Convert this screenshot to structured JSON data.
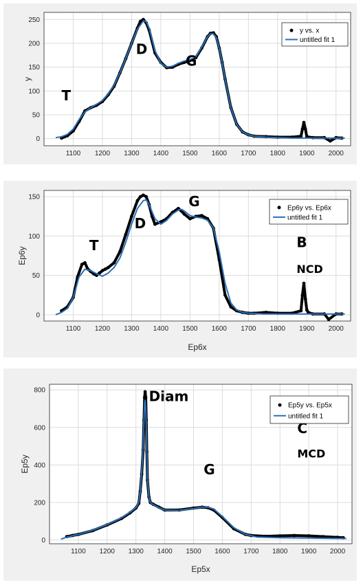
{
  "colors": {
    "frame": "#f0f0f0",
    "data": "#000000",
    "fit": "#2b6fb8",
    "grid": "#dcdcdc",
    "axes_bg": "#ffffff"
  },
  "chart_data": [
    {
      "type": "scatter",
      "xlabel": "",
      "ylabel": "y",
      "xlim": [
        1000,
        2050
      ],
      "ylim": [
        -15,
        265
      ],
      "xticks": [
        1100,
        1200,
        1300,
        1400,
        1500,
        1600,
        1700,
        1800,
        1900,
        2000
      ],
      "yticks": [
        0,
        50,
        100,
        150,
        200,
        250
      ],
      "grid": true,
      "legend": {
        "placement": "top-right",
        "entries": [
          "y vs. x",
          "untitled fit 1"
        ]
      },
      "annotations": [
        {
          "text": "T",
          "x": 1060,
          "y": 80,
          "size": 20
        },
        {
          "text": "D",
          "x": 1315,
          "y": 178,
          "size": 20
        },
        {
          "text": "G",
          "x": 1485,
          "y": 153,
          "size": 20
        }
      ],
      "series": [
        {
          "name": "y vs. x",
          "kind": "points",
          "x": [
            1060,
            1080,
            1100,
            1120,
            1140,
            1160,
            1180,
            1200,
            1220,
            1240,
            1260,
            1280,
            1300,
            1320,
            1330,
            1340,
            1350,
            1360,
            1380,
            1400,
            1420,
            1440,
            1460,
            1480,
            1500,
            1520,
            1540,
            1560,
            1570,
            1580,
            1590,
            1600,
            1610,
            1620,
            1640,
            1660,
            1680,
            1700,
            1720,
            1760,
            1800,
            1850,
            1880,
            1885,
            1890,
            1895,
            1900,
            1920,
            1960,
            1980,
            2000,
            2020
          ],
          "y": [
            1,
            6,
            16,
            36,
            58,
            65,
            70,
            78,
            92,
            110,
            138,
            168,
            200,
            232,
            246,
            250,
            243,
            228,
            180,
            160,
            149,
            150,
            156,
            160,
            164,
            170,
            190,
            214,
            221,
            222,
            214,
            190,
            160,
            125,
            65,
            30,
            14,
            8,
            5,
            4,
            3,
            3,
            5,
            20,
            34,
            20,
            4,
            2,
            2,
            -5,
            2,
            1
          ]
        },
        {
          "name": "untitled fit 1",
          "kind": "line",
          "x": [
            1040,
            1060,
            1080,
            1100,
            1120,
            1140,
            1160,
            1180,
            1200,
            1220,
            1240,
            1260,
            1280,
            1300,
            1320,
            1340,
            1350,
            1360,
            1380,
            1400,
            1420,
            1440,
            1460,
            1480,
            1500,
            1520,
            1540,
            1560,
            1570,
            1580,
            1590,
            1600,
            1610,
            1620,
            1640,
            1660,
            1680,
            1700,
            1720,
            1760,
            1800,
            1850,
            1900,
            1950,
            2000,
            2030
          ],
          "y": [
            2,
            4,
            9,
            20,
            40,
            56,
            65,
            72,
            80,
            94,
            112,
            138,
            168,
            200,
            230,
            247,
            246,
            232,
            185,
            158,
            150,
            152,
            158,
            163,
            166,
            172,
            192,
            214,
            220,
            220,
            212,
            190,
            160,
            125,
            65,
            30,
            14,
            8,
            5,
            3,
            2,
            1,
            1,
            1,
            1,
            1
          ]
        }
      ]
    },
    {
      "type": "scatter",
      "xlabel": "Ep6x",
      "ylabel": "Ep6y",
      "xlim": [
        1000,
        2050
      ],
      "ylim": [
        -8,
        158
      ],
      "xticks": [
        1100,
        1200,
        1300,
        1400,
        1500,
        1600,
        1700,
        1800,
        1900,
        2000
      ],
      "yticks": [
        0,
        50,
        100,
        150
      ],
      "grid": true,
      "legend": {
        "placement": "top-right",
        "entries": [
          "Ep6y vs. Ep6x",
          "untitled fit 1"
        ]
      },
      "annotations": [
        {
          "text": "T",
          "x": 1155,
          "y": 82,
          "size": 20
        },
        {
          "text": "D",
          "x": 1310,
          "y": 110,
          "size": 20
        },
        {
          "text": "G",
          "x": 1495,
          "y": 138,
          "size": 20
        },
        {
          "text": "B",
          "x": 1865,
          "y": 86,
          "size": 20
        },
        {
          "text": "NCD",
          "x": 1865,
          "y": 53,
          "size": 16
        }
      ],
      "series": [
        {
          "name": "Ep6y vs. Ep6x",
          "kind": "points",
          "x": [
            1060,
            1080,
            1100,
            1115,
            1130,
            1140,
            1150,
            1160,
            1170,
            1180,
            1190,
            1200,
            1210,
            1220,
            1240,
            1260,
            1280,
            1300,
            1320,
            1330,
            1340,
            1350,
            1360,
            1370,
            1380,
            1400,
            1420,
            1440,
            1460,
            1470,
            1480,
            1500,
            1520,
            1540,
            1560,
            1580,
            1600,
            1620,
            1640,
            1660,
            1680,
            1700,
            1720,
            1760,
            1800,
            1850,
            1880,
            1885,
            1890,
            1895,
            1900,
            1905,
            1920,
            1960,
            1975,
            2000,
            2020
          ],
          "y": [
            5,
            10,
            22,
            48,
            64,
            66,
            58,
            55,
            52,
            50,
            53,
            56,
            58,
            60,
            66,
            80,
            102,
            125,
            145,
            150,
            152,
            150,
            140,
            125,
            115,
            118,
            122,
            130,
            135,
            132,
            128,
            122,
            125,
            126,
            122,
            110,
            70,
            25,
            10,
            5,
            3,
            2,
            2,
            3,
            2,
            2,
            5,
            25,
            40,
            20,
            6,
            3,
            1,
            1,
            -6,
            1,
            1
          ]
        },
        {
          "name": "untitled fit 1",
          "kind": "line",
          "x": [
            1040,
            1060,
            1080,
            1100,
            1120,
            1140,
            1160,
            1180,
            1200,
            1220,
            1240,
            1260,
            1280,
            1300,
            1320,
            1340,
            1350,
            1360,
            1380,
            1400,
            1420,
            1440,
            1460,
            1470,
            1480,
            1500,
            1520,
            1540,
            1560,
            1580,
            1600,
            1620,
            1640,
            1660,
            1680,
            1700,
            1750,
            1800,
            1900,
            2000,
            2030
          ],
          "y": [
            0,
            3,
            8,
            22,
            48,
            58,
            56,
            52,
            49,
            53,
            60,
            72,
            92,
            115,
            135,
            145,
            146,
            140,
            122,
            115,
            120,
            128,
            133,
            134,
            132,
            126,
            124,
            123,
            120,
            110,
            80,
            40,
            15,
            6,
            3,
            2,
            1,
            1,
            1,
            1,
            1
          ]
        }
      ]
    },
    {
      "type": "scatter",
      "xlabel": "Ep5x",
      "ylabel": "Ep5y",
      "xlim": [
        1000,
        2050
      ],
      "ylim": [
        -20,
        830
      ],
      "xticks": [
        1100,
        1200,
        1300,
        1400,
        1500,
        1600,
        1700,
        1800,
        1900,
        2000
      ],
      "yticks": [
        0,
        200,
        400,
        600,
        800
      ],
      "grid": true,
      "legend": {
        "placement": "top-right",
        "entries": [
          "Ep5y vs. Ep5x",
          "untitled fit 1"
        ]
      },
      "annotations": [
        {
          "text": "Diam",
          "x": 1345,
          "y": 740,
          "size": 20
        },
        {
          "text": "G",
          "x": 1535,
          "y": 350,
          "size": 20
        },
        {
          "text": "C",
          "x": 1860,
          "y": 570,
          "size": 20
        },
        {
          "text": "MCD",
          "x": 1860,
          "y": 440,
          "size": 16
        }
      ],
      "series": [
        {
          "name": "Ep5y vs. Ep5x",
          "kind": "points",
          "x": [
            1060,
            1080,
            1100,
            1150,
            1200,
            1250,
            1280,
            1300,
            1310,
            1315,
            1320,
            1325,
            1328,
            1330,
            1332,
            1334,
            1336,
            1338,
            1340,
            1345,
            1350,
            1360,
            1380,
            1400,
            1450,
            1500,
            1530,
            1550,
            1570,
            1600,
            1640,
            1680,
            1700,
            1750,
            1800,
            1850,
            1900,
            1950,
            2000,
            2020
          ],
          "y": [
            18,
            24,
            30,
            50,
            80,
            115,
            145,
            170,
            195,
            260,
            350,
            480,
            640,
            760,
            790,
            760,
            640,
            470,
            320,
            230,
            200,
            190,
            175,
            160,
            160,
            170,
            175,
            172,
            160,
            120,
            60,
            30,
            24,
            20,
            22,
            24,
            22,
            18,
            14,
            12
          ]
        },
        {
          "name": "untitled fit 1",
          "kind": "line",
          "x": [
            1040,
            1060,
            1100,
            1150,
            1200,
            1250,
            1280,
            1300,
            1310,
            1315,
            1320,
            1325,
            1328,
            1330,
            1332,
            1334,
            1336,
            1338,
            1340,
            1345,
            1350,
            1360,
            1380,
            1400,
            1450,
            1500,
            1530,
            1550,
            1570,
            1600,
            1640,
            1680,
            1720,
            1800,
            1900,
            2000,
            2030
          ],
          "y": [
            5,
            15,
            30,
            52,
            82,
            118,
            148,
            172,
            200,
            260,
            360,
            500,
            640,
            730,
            745,
            700,
            600,
            470,
            330,
            230,
            200,
            188,
            172,
            160,
            158,
            168,
            175,
            175,
            165,
            125,
            65,
            30,
            16,
            12,
            10,
            8,
            8
          ]
        }
      ]
    }
  ]
}
